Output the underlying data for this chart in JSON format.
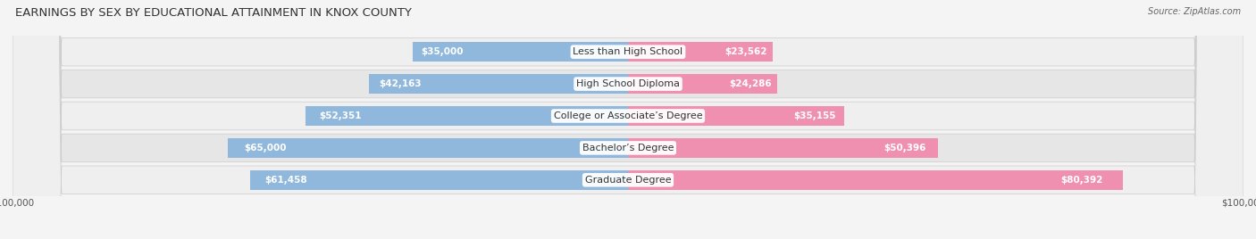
{
  "title": "EARNINGS BY SEX BY EDUCATIONAL ATTAINMENT IN KNOX COUNTY",
  "source": "Source: ZipAtlas.com",
  "categories": [
    "Less than High School",
    "High School Diploma",
    "College or Associate’s Degree",
    "Bachelor’s Degree",
    "Graduate Degree"
  ],
  "male_values": [
    35000,
    42163,
    52351,
    65000,
    61458
  ],
  "female_values": [
    23562,
    24286,
    35155,
    50396,
    80392
  ],
  "male_color": "#90b8dc",
  "female_color": "#f090b0",
  "max_value": 100000,
  "bar_height": 0.62,
  "background_color": "#f4f4f4",
  "row_color_odd": "#efefef",
  "row_color_even": "#e6e6e6",
  "title_fontsize": 9.5,
  "label_fontsize": 8.0,
  "value_fontsize": 7.5,
  "axis_label": "$100,000",
  "inside_threshold": 20000
}
